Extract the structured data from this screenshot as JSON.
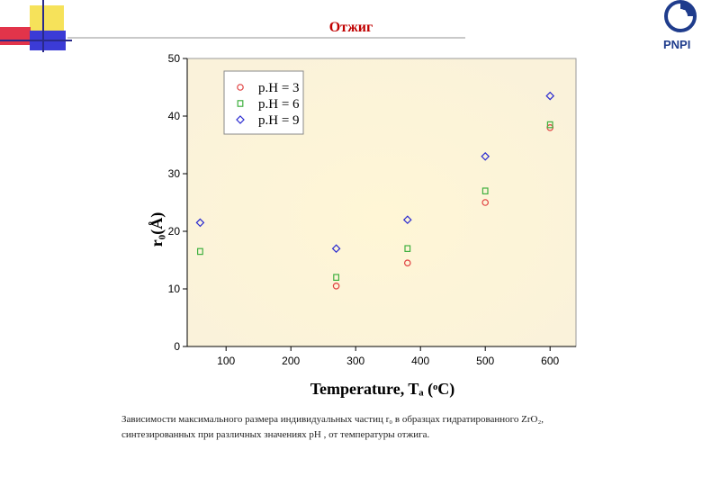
{
  "header": {
    "title": "Отжиг",
    "logo_text": "PNPI",
    "colors": {
      "title": "#c00000",
      "yellow_block": "#f6e25a",
      "red_block": "#e2344a",
      "blue_block": "#3b3bd6"
    }
  },
  "caption": {
    "line1": "Зависимости максимального размера индивидуальных частиц r₀ в образцах гидратированного ZrO₂,",
    "line2": "синтезированных при различных значениях pH , от температуры отжига."
  },
  "chart_data": {
    "type": "scatter",
    "xlabel": "Temperature, Tₐ (ᵒC)",
    "ylabel": "r₀(Å)",
    "xlim": [
      40,
      640
    ],
    "ylim": [
      0,
      50
    ],
    "x_ticks": [
      100,
      200,
      300,
      400,
      500,
      600
    ],
    "y_ticks": [
      0,
      10,
      20,
      30,
      40,
      50
    ],
    "grid": false,
    "legend_position": "top-left",
    "series": [
      {
        "name": "p.H = 3",
        "marker": "circle",
        "color": "#e04040",
        "points": [
          [
            270,
            10.5
          ],
          [
            380,
            14.5
          ],
          [
            500,
            25
          ],
          [
            600,
            38
          ]
        ]
      },
      {
        "name": "p.H = 6",
        "marker": "square",
        "color": "#40b040",
        "points": [
          [
            60,
            16.5
          ],
          [
            270,
            12
          ],
          [
            380,
            17
          ],
          [
            500,
            27
          ],
          [
            600,
            38.5
          ]
        ]
      },
      {
        "name": "p.H = 9",
        "marker": "diamond",
        "color": "#2a2ad0",
        "points": [
          [
            60,
            21.5
          ],
          [
            270,
            17
          ],
          [
            380,
            22
          ],
          [
            500,
            33
          ],
          [
            600,
            43.5
          ]
        ]
      }
    ]
  }
}
